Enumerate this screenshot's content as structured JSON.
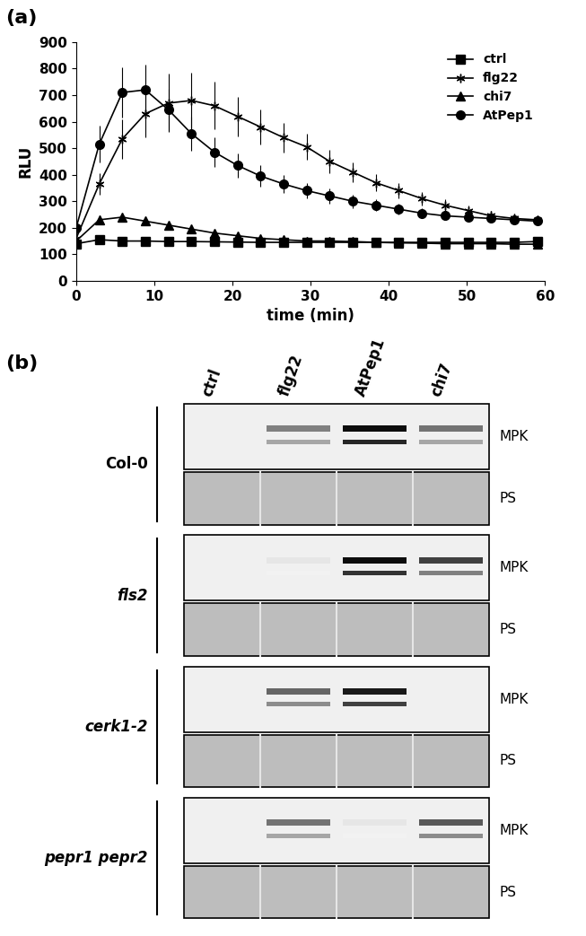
{
  "chart_data": {
    "type": "line",
    "title": "(a)",
    "xlabel": "time (min)",
    "ylabel": "RLU",
    "xlim": [
      0,
      60
    ],
    "xticks": [
      0,
      10,
      20,
      30,
      40,
      50,
      60
    ],
    "ylim": [
      0,
      900
    ],
    "yticks": [
      0,
      100,
      200,
      300,
      400,
      500,
      600,
      700,
      800,
      900
    ],
    "legend": "upper right",
    "x": [
      0,
      2.95,
      5.9,
      8.85,
      11.8,
      14.75,
      17.7,
      20.65,
      23.6,
      26.55,
      29.5,
      32.45,
      35.4,
      38.35,
      41.3,
      44.25,
      47.2,
      50.15,
      53.1,
      56.05,
      59
    ],
    "series": [
      {
        "name": "ctrl",
        "color": "#000000",
        "marker": "square",
        "values": [
          140,
          155,
          150,
          150,
          148,
          148,
          147,
          146,
          145,
          145,
          145,
          145,
          145,
          145,
          145,
          145,
          145,
          145,
          145,
          145,
          148
        ],
        "error": [
          5,
          5,
          5,
          5,
          5,
          5,
          5,
          5,
          5,
          5,
          5,
          5,
          5,
          5,
          5,
          5,
          5,
          5,
          5,
          5,
          5
        ]
      },
      {
        "name": "flg22",
        "color": "#000000",
        "marker": "asterisk",
        "values": [
          160,
          365,
          535,
          630,
          670,
          680,
          660,
          620,
          580,
          540,
          505,
          450,
          410,
          370,
          340,
          310,
          285,
          265,
          245,
          235,
          230
        ],
        "error": [
          10,
          40,
          75,
          90,
          110,
          105,
          90,
          75,
          65,
          55,
          50,
          45,
          38,
          33,
          28,
          25,
          22,
          20,
          18,
          16,
          15
        ]
      },
      {
        "name": "chi7",
        "color": "#000000",
        "marker": "triangle",
        "values": [
          150,
          230,
          240,
          225,
          210,
          195,
          180,
          170,
          160,
          155,
          150,
          150,
          148,
          145,
          143,
          142,
          140,
          140,
          140,
          138,
          138
        ],
        "error": [
          5,
          15,
          15,
          12,
          10,
          8,
          6,
          5,
          5,
          5,
          5,
          5,
          5,
          5,
          5,
          5,
          5,
          5,
          5,
          5,
          5
        ]
      },
      {
        "name": "AtPep1",
        "color": "#000000",
        "marker": "circle",
        "values": [
          200,
          515,
          710,
          720,
          645,
          555,
          485,
          435,
          395,
          365,
          340,
          320,
          300,
          285,
          270,
          255,
          245,
          240,
          235,
          230,
          225
        ],
        "error": [
          0,
          70,
          95,
          95,
          80,
          65,
          55,
          45,
          40,
          35,
          30,
          28,
          25,
          22,
          20,
          18,
          16,
          15,
          14,
          13,
          12
        ]
      }
    ]
  },
  "blot": {
    "title": "(b)",
    "lanes": [
      "ctrl",
      "flg22",
      "AtPep1",
      "chi7"
    ],
    "row_labels": [
      "MPK",
      "PS"
    ],
    "genotypes": [
      {
        "name": "Col-0",
        "italic": false,
        "mpk_upper": [
          0,
          0.5,
          0.95,
          0.55
        ],
        "mpk_lower": [
          0,
          0.35,
          0.85,
          0.35
        ]
      },
      {
        "name": "fls2",
        "italic": true,
        "mpk_upper": [
          0,
          0.1,
          0.95,
          0.75
        ],
        "mpk_lower": [
          0,
          0.05,
          0.8,
          0.5
        ]
      },
      {
        "name": "cerk1-2",
        "italic": true,
        "mpk_upper": [
          0,
          0.6,
          0.9,
          0
        ],
        "mpk_lower": [
          0,
          0.45,
          0.75,
          0
        ]
      },
      {
        "name": "pepr1 pepr2",
        "italic": true,
        "mpk_upper": [
          0,
          0.55,
          0.1,
          0.65
        ],
        "mpk_lower": [
          0,
          0.35,
          0.05,
          0.45
        ]
      }
    ]
  }
}
